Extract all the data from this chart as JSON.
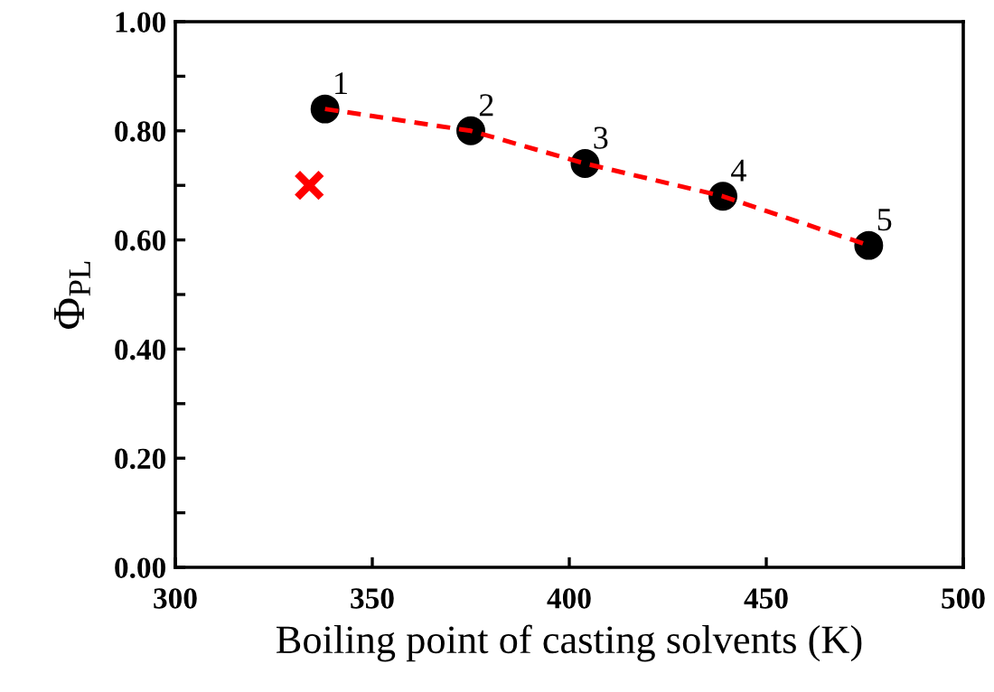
{
  "chart_data": {
    "type": "scatter",
    "xlabel": "Boiling point of casting solvents (K)",
    "ylabel": "Φ$_{PL}$",
    "xlim": [
      300,
      500
    ],
    "xticks": [
      300,
      350,
      400,
      450,
      500
    ],
    "ylim": [
      0,
      1
    ],
    "yticks": [
      {
        "value": 0,
        "label": "0.00"
      },
      {
        "value": 0.1,
        "label": null
      },
      {
        "value": 0.2,
        "label": "0.20"
      },
      {
        "value": 0.3,
        "label": null
      },
      {
        "value": 0.4,
        "label": "0.40"
      },
      {
        "value": 0.5,
        "label": null
      },
      {
        "value": 0.6,
        "label": "0.60"
      },
      {
        "value": 0.7,
        "label": null
      },
      {
        "value": 0.8,
        "label": "0.80"
      },
      {
        "value": 0.9,
        "label": null
      },
      {
        "value": 1,
        "label": "1.00"
      }
    ],
    "grid": false,
    "legend": false,
    "series": [
      {
        "type": "line",
        "color": "#ff0000",
        "line_style": "dashed",
        "marker": "none",
        "x": [
          338,
          375,
          404,
          439,
          476
        ],
        "values": [
          0.84,
          0.8,
          0.74,
          0.68,
          0.59
        ]
      },
      {
        "color": "#000000",
        "marker": "circle",
        "x": [
          338,
          375,
          404,
          439,
          476
        ],
        "values": [
          0.84,
          0.8,
          0.74,
          0.68,
          0.59
        ]
      },
      {
        "color": "#ff0000",
        "marker": "cross",
        "x": [
          334
        ],
        "values": [
          0.7
        ]
      }
    ],
    "annotations": [
      {
        "text": "1",
        "x": 338,
        "y": 0.84
      },
      {
        "text": "2",
        "x": 375,
        "y": 0.8
      },
      {
        "text": "3",
        "x": 404,
        "y": 0.74
      },
      {
        "text": "4",
        "x": 439,
        "y": 0.68
      },
      {
        "text": "5",
        "x": 476,
        "y": 0.59
      }
    ]
  }
}
